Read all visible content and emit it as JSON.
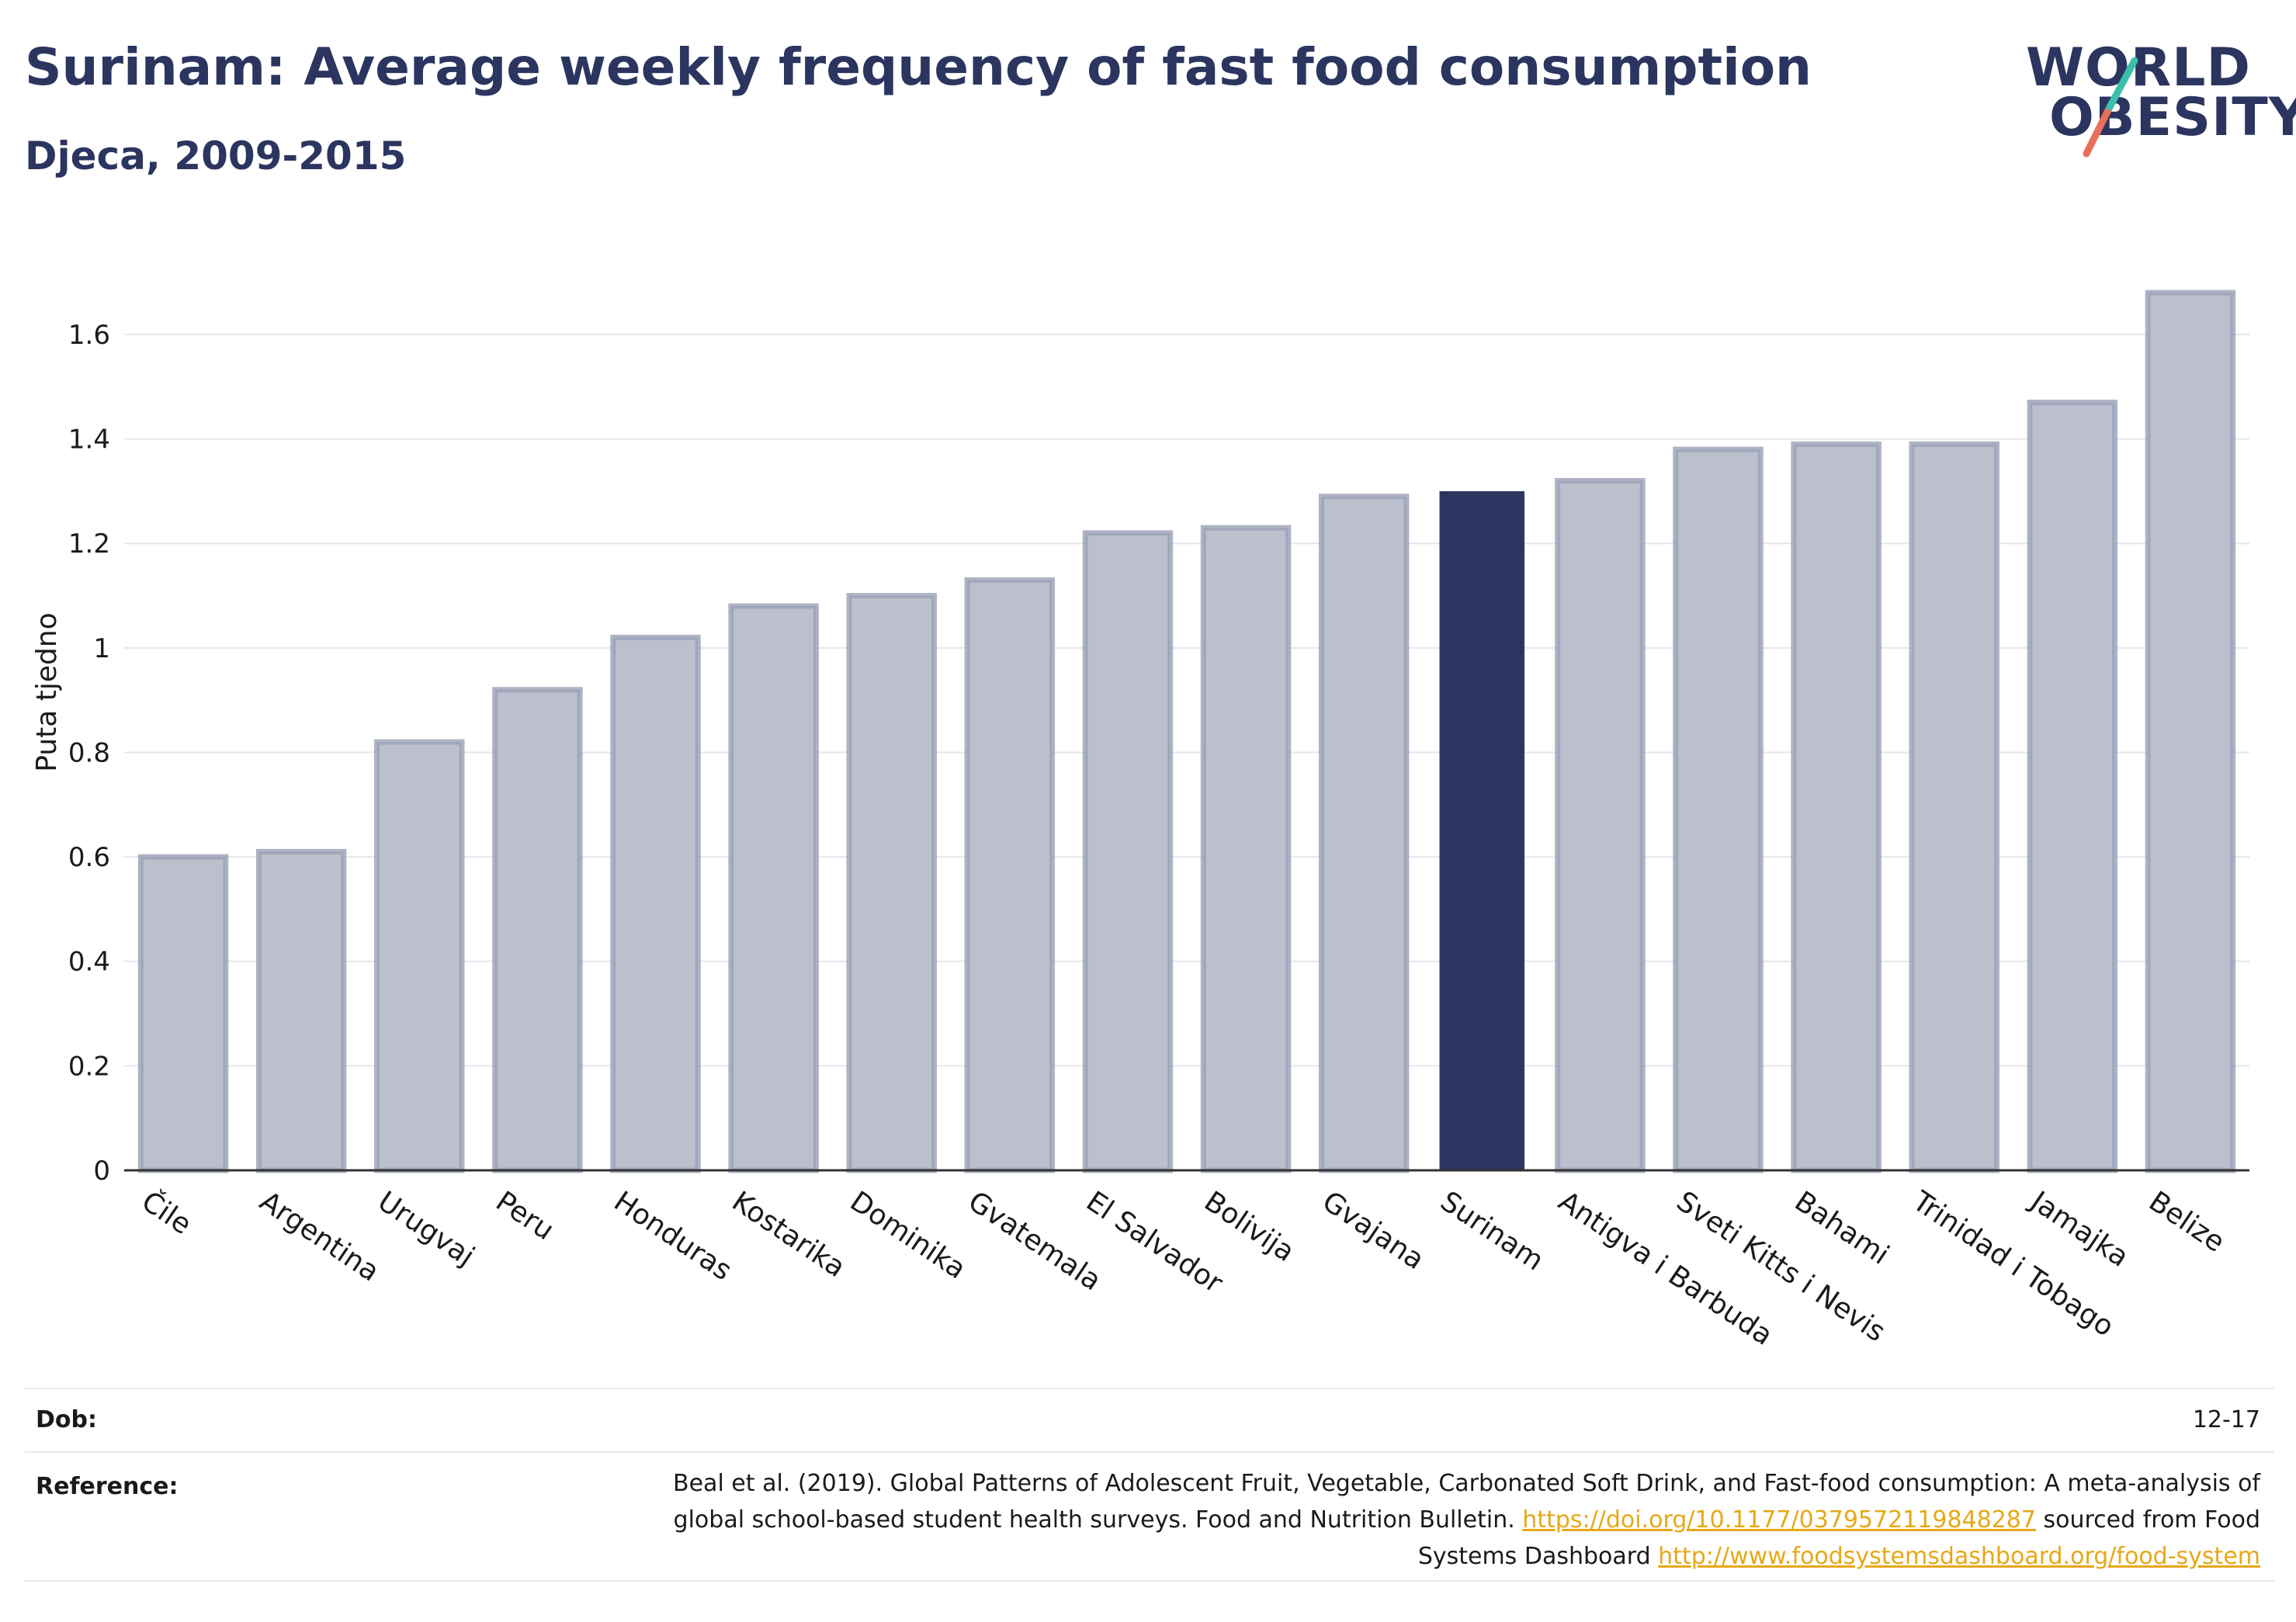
{
  "header": {
    "title": "Surinam: Average weekly frequency of fast food consumption",
    "subtitle": "Djeca, 2009-2015"
  },
  "logo": {
    "line1": "WORLD",
    "line2": "OBESITY"
  },
  "colors": {
    "bar": "#bcc0cd",
    "bar_stroke": "#9aa0b6",
    "highlight": "#2b3560",
    "grid": "#e6e6ee",
    "link": "#e6a817"
  },
  "chart_data": {
    "type": "bar",
    "ylabel": "Puta tjedno",
    "ylim": [
      0,
      1.75
    ],
    "yticks": [
      0,
      0.2,
      0.4,
      0.6,
      0.8,
      1,
      1.2,
      1.4,
      1.6
    ],
    "ytick_labels": [
      "0",
      "0.2",
      "0.4",
      "0.6",
      "0.8",
      "1",
      "1.2",
      "1.4",
      "1.6"
    ],
    "grid": true,
    "categories": [
      "Čile",
      "Argentina",
      "Urugvaj",
      "Peru",
      "Honduras",
      "Kostarika",
      "Dominika",
      "Gvatemala",
      "El Salvador",
      "Bolivija",
      "Gvajana",
      "Surinam",
      "Antigva i Barbuda",
      "Sveti Kitts i Nevis",
      "Bahami",
      "Trinidad i Tobago",
      "Jamajka",
      "Belize"
    ],
    "values": [
      0.6,
      0.61,
      0.82,
      0.92,
      1.02,
      1.08,
      1.1,
      1.13,
      1.22,
      1.23,
      1.29,
      1.3,
      1.32,
      1.38,
      1.39,
      1.39,
      1.47,
      1.68
    ],
    "highlight": "Surinam"
  },
  "footer": {
    "age_label": "Dob:",
    "age_value": "12-17",
    "reference_label": "Reference:",
    "reference_text_1": "Beal et al. (2019). Global Patterns of Adolescent Fruit, Vegetable, Carbonated Soft Drink, and Fast-food consumption: A meta-analysis of global school-based student health surveys. Food and Nutrition Bulletin. ",
    "reference_link_1": "https://doi.org/10.1177/0379572119848287",
    "reference_text_2": " sourced from Food Systems Dashboard ",
    "reference_link_2": "http://www.foodsystemsdashboard.org/food-system"
  }
}
